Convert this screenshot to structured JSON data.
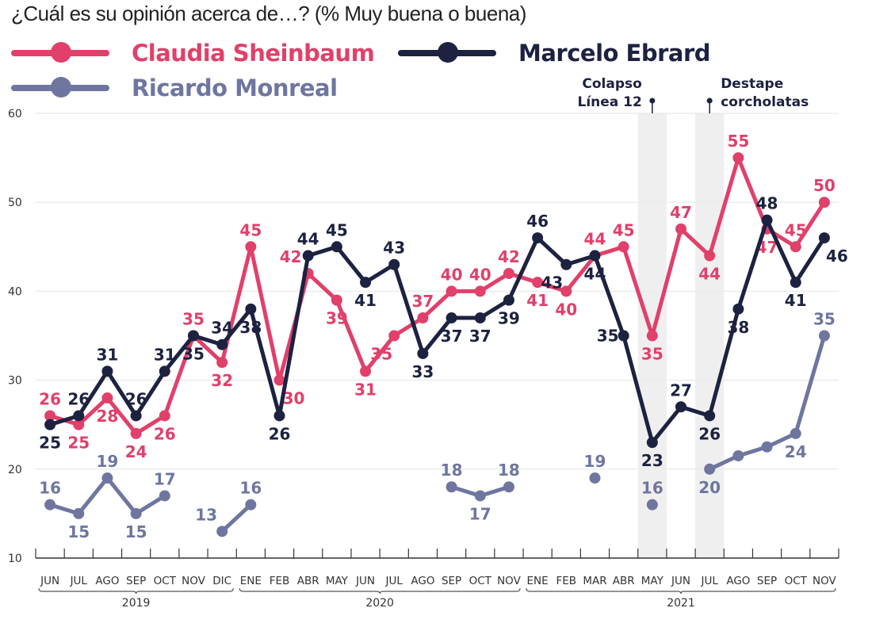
{
  "chart_data": {
    "type": "line",
    "title": "¿Cuál es su opinión acerca de…? (% Muy buena o buena)",
    "xlabel": "",
    "ylabel": "",
    "ylim": [
      10,
      60
    ],
    "yticks": [
      10,
      20,
      30,
      40,
      50,
      60
    ],
    "grid": true,
    "legend_position": "top-left",
    "categories": [
      "JUN",
      "JUL",
      "AGO",
      "SEP",
      "OCT",
      "NOV",
      "DIC",
      "ENE",
      "FEB",
      "ABR",
      "MAY",
      "JUN",
      "JUL",
      "AGO",
      "SEP",
      "OCT",
      "NOV",
      "ENE",
      "FEB",
      "MAR",
      "ABR",
      "MAY",
      "JUN",
      "JUL",
      "AGO",
      "SEP",
      "OCT",
      "NOV"
    ],
    "year_groups": [
      {
        "label": "2019",
        "start": 0,
        "end": 6
      },
      {
        "label": "2020",
        "start": 7,
        "end": 16
      },
      {
        "label": "2021",
        "start": 17,
        "end": 27
      }
    ],
    "series": [
      {
        "name": "Claudia Sheinbaum",
        "color": "#e0406a",
        "values": [
          26,
          25,
          28,
          24,
          26,
          35,
          32,
          45,
          30,
          42,
          39,
          31,
          35,
          37,
          40,
          40,
          42,
          41,
          40,
          44,
          45,
          35,
          47,
          44,
          55,
          47,
          45,
          50
        ],
        "labeled": [
          true,
          true,
          true,
          true,
          true,
          true,
          true,
          true,
          true,
          true,
          true,
          true,
          true,
          true,
          true,
          true,
          true,
          true,
          true,
          true,
          true,
          true,
          true,
          true,
          true,
          true,
          true,
          true
        ]
      },
      {
        "name": "Marcelo Ebrard",
        "color": "#1c2240",
        "values": [
          25,
          26,
          31,
          26,
          31,
          35,
          34,
          38,
          26,
          44,
          45,
          41,
          43,
          33,
          37,
          37,
          39,
          46,
          43,
          44,
          35,
          23,
          27,
          26,
          38,
          48,
          41,
          46
        ],
        "labeled": [
          true,
          true,
          true,
          true,
          true,
          true,
          true,
          true,
          true,
          true,
          true,
          true,
          true,
          true,
          true,
          true,
          true,
          true,
          true,
          true,
          true,
          true,
          true,
          true,
          true,
          true,
          true,
          true
        ]
      },
      {
        "name": "Ricardo Monreal",
        "color": "#6e76a0",
        "values": [
          16,
          15,
          19,
          15,
          17,
          null,
          13,
          16,
          null,
          null,
          null,
          null,
          null,
          null,
          18,
          17,
          18,
          null,
          null,
          19,
          null,
          16,
          null,
          20,
          21.5,
          22.5,
          24,
          35
        ],
        "labeled": [
          true,
          true,
          true,
          true,
          true,
          false,
          true,
          true,
          false,
          false,
          false,
          false,
          false,
          false,
          true,
          true,
          true,
          false,
          false,
          true,
          false,
          true,
          false,
          true,
          false,
          false,
          true,
          true
        ]
      }
    ],
    "annotations": [
      {
        "label_lines": [
          "Colapso",
          "Línea 12"
        ],
        "category_index": 21
      },
      {
        "label_lines": [
          "Destape",
          "corcholatas"
        ],
        "category_index": 23
      }
    ]
  }
}
